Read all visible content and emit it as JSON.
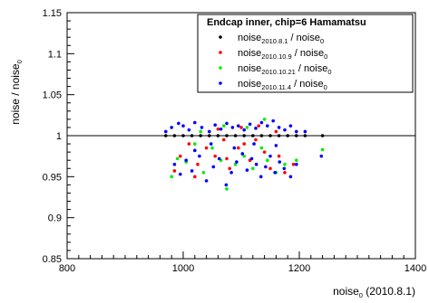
{
  "chart_data": {
    "type": "scatter",
    "title": "",
    "xlabel": "noise",
    "xlabel_sub": "0",
    "xlabel_suffix": " (2010.8.1)",
    "ylabel": "noise / noise",
    "ylabel_sub": "0",
    "xlim": [
      800,
      1400
    ],
    "ylim": [
      0.85,
      1.15
    ],
    "x_ticks": [
      800,
      1000,
      1200,
      1400
    ],
    "y_ticks": [
      0.85,
      0.9,
      0.95,
      1,
      1.05,
      1.1,
      1.15
    ],
    "reference_line_y": 1,
    "legend": {
      "title": "Endcap inner, chip=6 Hamamatsu",
      "placement": "top-right",
      "entries": [
        {
          "base": "noise",
          "sub": "2010.8.1",
          "tail": " / noise",
          "tail_sub": "0",
          "color": "#000000"
        },
        {
          "base": "noise",
          "sub": "2010.10.9",
          "tail": " / noise",
          "tail_sub": "0",
          "color": "#ff0000"
        },
        {
          "base": "noise",
          "sub": "2010.10.21",
          "tail": " / noise",
          "tail_sub": "0",
          "color": "#00ee00"
        },
        {
          "base": "noise",
          "sub": "2010.11.4",
          "tail": " / noise",
          "tail_sub": "0",
          "color": "#0000ff"
        }
      ]
    },
    "series": [
      {
        "name": "noise2010.8.1 / noise0",
        "color": "#000000",
        "points": [
          [
            970,
            1.0
          ],
          [
            985,
            1.0
          ],
          [
            1000,
            1.0
          ],
          [
            1015,
            1.0
          ],
          [
            1030,
            1.0
          ],
          [
            1045,
            1.0
          ],
          [
            1060,
            1.0
          ],
          [
            1075,
            1.0
          ],
          [
            1090,
            1.0
          ],
          [
            1105,
            1.0
          ],
          [
            1120,
            1.0
          ],
          [
            1135,
            1.0
          ],
          [
            1150,
            1.0
          ],
          [
            1165,
            1.0
          ],
          [
            1180,
            1.0
          ],
          [
            1195,
            1.0
          ],
          [
            1210,
            1.0
          ],
          [
            1240,
            1.0
          ]
        ]
      },
      {
        "name": "noise2010.10.9 / noise0",
        "color": "#ff0000",
        "points": [
          [
            985,
            0.957
          ],
          [
            995,
            0.975
          ],
          [
            1010,
            0.99
          ],
          [
            1025,
            0.965
          ],
          [
            1040,
            0.985
          ],
          [
            1055,
            0.975
          ],
          [
            1070,
            0.995
          ],
          [
            1080,
            0.96
          ],
          [
            1095,
            0.985
          ],
          [
            1105,
            0.99
          ],
          [
            1115,
            0.97
          ],
          [
            1125,
            0.995
          ],
          [
            1140,
            0.98
          ],
          [
            1150,
            0.96
          ],
          [
            1165,
            0.975
          ],
          [
            1175,
            0.955
          ],
          [
            1190,
            0.965
          ],
          [
            1060,
            1.008
          ],
          [
            1100,
            1.01
          ],
          [
            1130,
            1.012
          ],
          [
            1160,
            1.005
          ],
          [
            1020,
            0.95
          ],
          [
            1075,
            0.972
          ]
        ]
      },
      {
        "name": "noise2010.10.21 / noise0",
        "color": "#00ee00",
        "points": [
          [
            980,
            0.95
          ],
          [
            990,
            0.972
          ],
          [
            1005,
            0.968
          ],
          [
            1020,
            0.99
          ],
          [
            1035,
            0.955
          ],
          [
            1050,
            0.985
          ],
          [
            1065,
            0.97
          ],
          [
            1075,
            0.935
          ],
          [
            1090,
            0.965
          ],
          [
            1105,
            0.975
          ],
          [
            1120,
            0.96
          ],
          [
            1135,
            0.985
          ],
          [
            1145,
            0.97
          ],
          [
            1160,
            0.955
          ],
          [
            1175,
            0.965
          ],
          [
            1195,
            0.97
          ],
          [
            1240,
            0.983
          ],
          [
            1140,
            1.02
          ],
          [
            1110,
            1.01
          ],
          [
            1070,
            1.012
          ],
          [
            1030,
            1.005
          ]
        ]
      },
      {
        "name": "noise2010.11.4 / noise0",
        "color": "#0000ff",
        "points": [
          [
            970,
            1.005
          ],
          [
            980,
            1.01
          ],
          [
            992,
            1.015
          ],
          [
            1000,
            1.012
          ],
          [
            1010,
            1.007
          ],
          [
            1020,
            1.016
          ],
          [
            1032,
            1.01
          ],
          [
            1045,
            1.005
          ],
          [
            1055,
            1.013
          ],
          [
            1065,
            1.008
          ],
          [
            1075,
            1.015
          ],
          [
            1085,
            1.01
          ],
          [
            1095,
            1.012
          ],
          [
            1105,
            1.007
          ],
          [
            1115,
            1.014
          ],
          [
            1125,
            1.009
          ],
          [
            1135,
            1.016
          ],
          [
            1145,
            1.012
          ],
          [
            1155,
            1.018
          ],
          [
            1165,
            1.01
          ],
          [
            1175,
            1.007
          ],
          [
            1185,
            1.012
          ],
          [
            1195,
            1.005
          ],
          [
            1210,
            1.005
          ],
          [
            985,
            0.965
          ],
          [
            995,
            0.953
          ],
          [
            1005,
            0.97
          ],
          [
            1015,
            0.957
          ],
          [
            1028,
            0.975
          ],
          [
            1040,
            0.945
          ],
          [
            1052,
            0.962
          ],
          [
            1062,
            0.972
          ],
          [
            1074,
            0.94
          ],
          [
            1083,
            0.955
          ],
          [
            1092,
            0.968
          ],
          [
            1102,
            0.978
          ],
          [
            1110,
            0.958
          ],
          [
            1118,
            0.972
          ],
          [
            1126,
            0.965
          ],
          [
            1134,
            0.95
          ],
          [
            1142,
            0.962
          ],
          [
            1150,
            0.975
          ],
          [
            1158,
            0.955
          ],
          [
            1166,
            0.968
          ],
          [
            1174,
            0.96
          ],
          [
            1185,
            0.95
          ],
          [
            1195,
            0.965
          ],
          [
            1238,
            0.975
          ],
          [
            1020,
            0.982
          ],
          [
            1048,
            0.99
          ],
          [
            1088,
            0.985
          ],
          [
            1122,
            0.99
          ],
          [
            1160,
            0.988
          ]
        ]
      }
    ]
  }
}
